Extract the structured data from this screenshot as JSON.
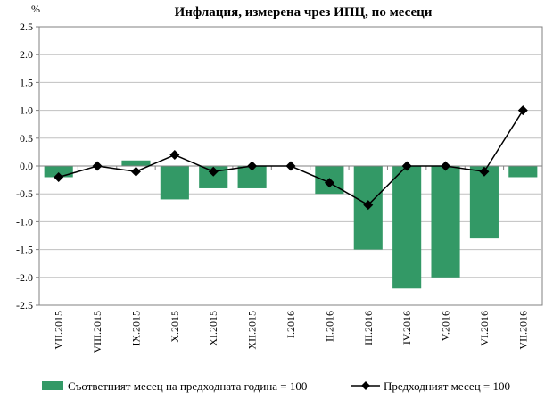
{
  "chart_data": {
    "type": "bar+line",
    "title": "Инфлация, измерена чрез ИПЦ, по месеци",
    "y_unit": "%",
    "ylim": [
      -2.5,
      2.5
    ],
    "yticks": [
      2.5,
      2.0,
      1.5,
      1.0,
      0.5,
      0.0,
      -0.5,
      -1.0,
      -1.5,
      -2.0,
      -2.5
    ],
    "ytick_labels": [
      "2.5",
      "2.0",
      "1.5",
      "1.0",
      "0.5",
      "0.0",
      "-0.5",
      "-1.0",
      "-1.5",
      "-2.0",
      "-2.5"
    ],
    "grid": true,
    "legend_position": "bottom",
    "categories": [
      "VII.2015",
      "VIII.2015",
      "IX.2015",
      "X.2015",
      "XI.2015",
      "XII.2015",
      "I.2016",
      "II.2016",
      "III.2016",
      "IV.2016",
      "V.2016",
      "VI.2016",
      "VII.2016"
    ],
    "series": [
      {
        "name": "Съответният месец на предходната година = 100",
        "kind": "bar",
        "color": "#339966",
        "values": [
          -0.2,
          0.0,
          0.1,
          -0.6,
          -0.4,
          -0.4,
          0.0,
          -0.5,
          -1.5,
          -2.2,
          -2.0,
          -1.3,
          -0.2
        ]
      },
      {
        "name": "Предходният месец = 100",
        "kind": "line",
        "color": "#000000",
        "marker": "diamond",
        "values": [
          -0.2,
          0.0,
          -0.1,
          0.2,
          -0.1,
          0.0,
          0.0,
          -0.3,
          -0.7,
          0.0,
          0.0,
          -0.1,
          1.0
        ]
      }
    ]
  }
}
